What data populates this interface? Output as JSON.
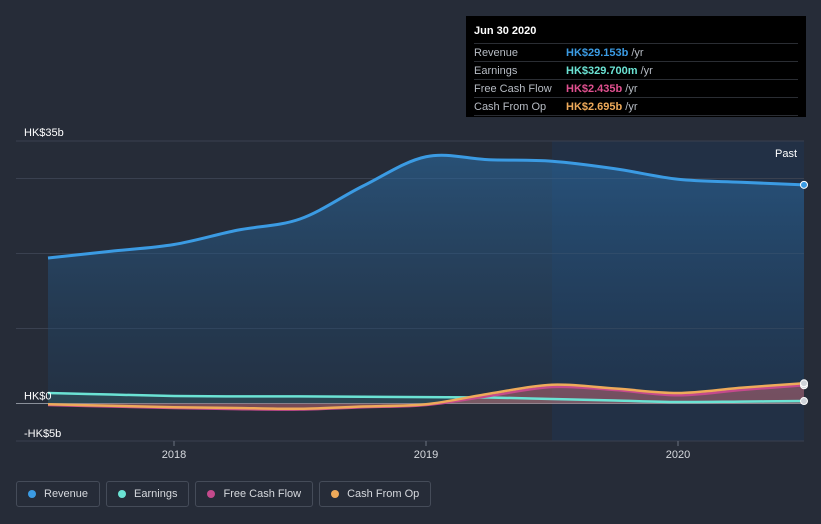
{
  "tooltip": {
    "date": "Jun 30 2020",
    "rows": [
      {
        "label": "Revenue",
        "value": "HK$29.153b",
        "unit": "/yr",
        "color": "#3b9be3"
      },
      {
        "label": "Earnings",
        "value": "HK$329.700m",
        "unit": "/yr",
        "color": "#6be3d4"
      },
      {
        "label": "Free Cash Flow",
        "value": "HK$2.435b",
        "unit": "/yr",
        "color": "#e0508f"
      },
      {
        "label": "Cash From Op",
        "value": "HK$2.695b",
        "unit": "/yr",
        "color": "#eeaa5a"
      }
    ]
  },
  "past_label": "Past",
  "legend": [
    {
      "label": "Revenue",
      "color": "#3b9be3"
    },
    {
      "label": "Earnings",
      "color": "#6be3d4"
    },
    {
      "label": "Free Cash Flow",
      "color": "#c44a8c"
    },
    {
      "label": "Cash From Op",
      "color": "#eeaa5a"
    }
  ],
  "chart_data": {
    "type": "area",
    "ylim": [
      -5,
      35
    ],
    "xlim": [
      2017.5,
      2020.5
    ],
    "y_tick_labels": [
      {
        "value": 35,
        "label": "HK$35b"
      },
      {
        "value": 0,
        "label": "HK$0"
      },
      {
        "value": -5,
        "label": "-HK$5b"
      }
    ],
    "x_tick_labels": [
      {
        "value": 2018,
        "label": "2018"
      },
      {
        "value": 2019,
        "label": "2019"
      },
      {
        "value": 2020,
        "label": "2020"
      }
    ],
    "past_region_start": 2019.5,
    "series": [
      {
        "name": "Revenue",
        "color": "#3b9be3",
        "x": [
          2017.5,
          2017.75,
          2018.0,
          2018.25,
          2018.5,
          2018.75,
          2019.0,
          2019.25,
          2019.5,
          2019.75,
          2020.0,
          2020.25,
          2020.5
        ],
        "values": [
          19.4,
          20.3,
          21.2,
          23.1,
          24.6,
          29.0,
          32.9,
          32.5,
          32.3,
          31.3,
          29.9,
          29.5,
          29.153
        ]
      },
      {
        "name": "Earnings",
        "color": "#6be3d4",
        "x": [
          2017.5,
          2017.75,
          2018.0,
          2018.25,
          2018.5,
          2018.75,
          2019.0,
          2019.25,
          2019.5,
          2019.75,
          2020.0,
          2020.25,
          2020.5
        ],
        "values": [
          1.4,
          1.2,
          1.0,
          0.95,
          0.95,
          0.9,
          0.85,
          0.8,
          0.6,
          0.4,
          0.2,
          0.25,
          0.33
        ]
      },
      {
        "name": "Free Cash Flow",
        "color": "#c44a8c",
        "x": [
          2017.5,
          2017.75,
          2018.0,
          2018.25,
          2018.5,
          2018.75,
          2019.0,
          2019.25,
          2019.5,
          2019.75,
          2020.0,
          2020.25,
          2020.5
        ],
        "values": [
          -0.2,
          -0.4,
          -0.6,
          -0.75,
          -0.8,
          -0.5,
          -0.2,
          1.0,
          2.2,
          1.8,
          1.1,
          1.8,
          2.435
        ]
      },
      {
        "name": "Cash From Op",
        "color": "#eeaa5a",
        "x": [
          2017.5,
          2017.75,
          2018.0,
          2018.25,
          2018.5,
          2018.75,
          2019.0,
          2019.25,
          2019.5,
          2019.75,
          2020.0,
          2020.25,
          2020.5
        ],
        "values": [
          -0.1,
          -0.3,
          -0.5,
          -0.6,
          -0.7,
          -0.4,
          -0.1,
          1.3,
          2.5,
          2.0,
          1.4,
          2.1,
          2.695
        ]
      }
    ]
  }
}
